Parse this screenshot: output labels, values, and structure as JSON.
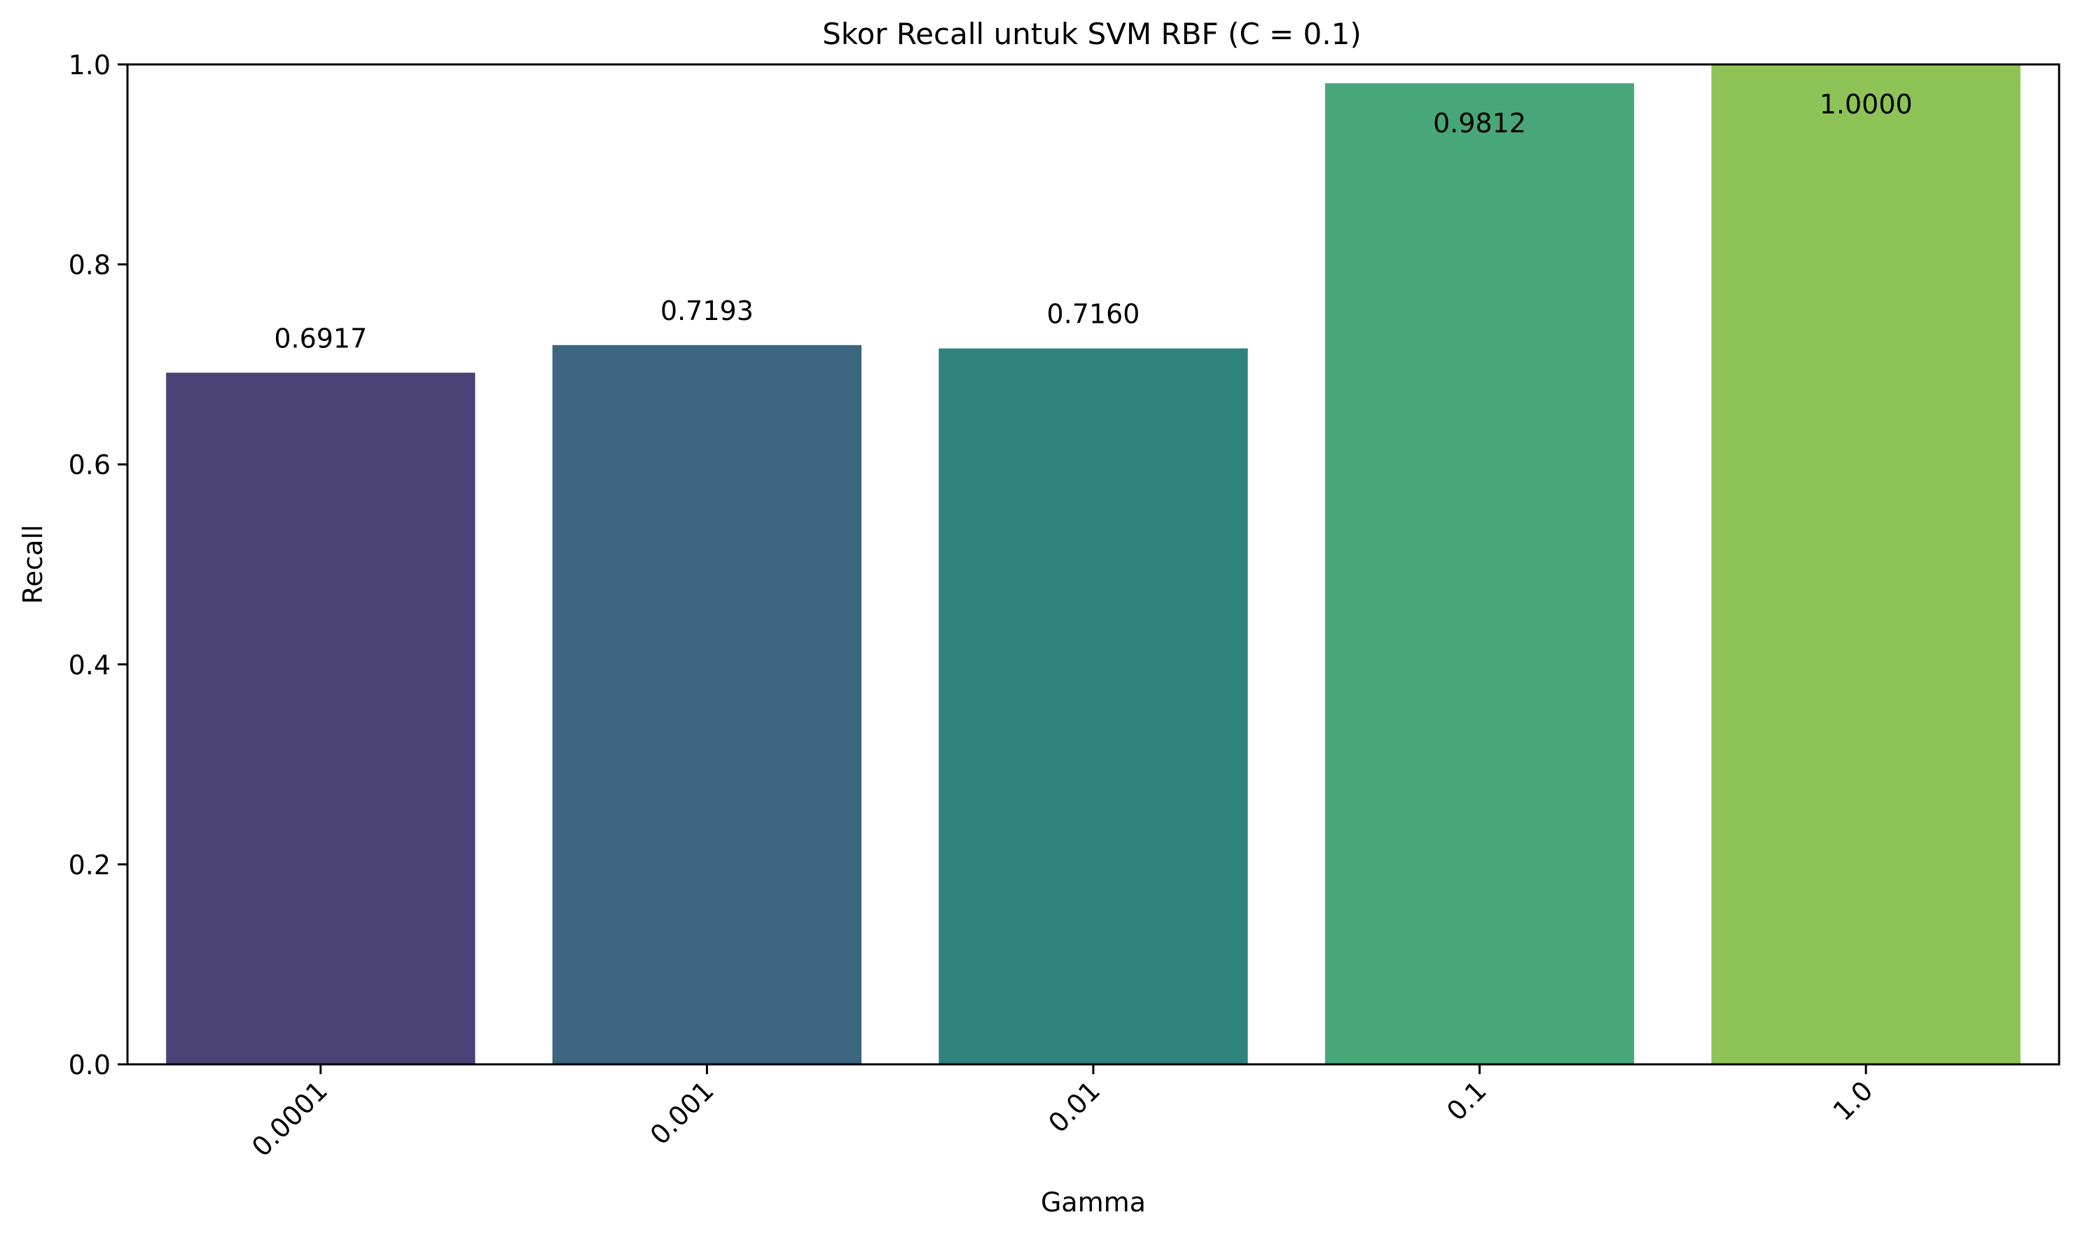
{
  "chart_data": {
    "type": "bar",
    "title": "Skor Recall untuk SVM RBF (C = 0.1)",
    "xlabel": "Gamma",
    "ylabel": "Recall",
    "categories": [
      "0.0001",
      "0.001",
      "0.01",
      "0.1",
      "1.0"
    ],
    "values": [
      0.6917,
      0.7193,
      0.716,
      0.9812,
      1.0
    ],
    "value_labels": [
      "0.6917",
      "0.7193",
      "0.7160",
      "0.9812",
      "1.0000"
    ],
    "colors": [
      "#4b4277",
      "#3d6680",
      "#2e837e",
      "#47a779",
      "#8dc356"
    ],
    "ylim": [
      0,
      1.0
    ],
    "yticks": [
      0.0,
      0.2,
      0.4,
      0.6,
      0.8,
      1.0
    ],
    "ytick_labels": [
      "0.0",
      "0.2",
      "0.4",
      "0.6",
      "0.8",
      "1.0"
    ],
    "xtick_rotation_deg": 45,
    "grid": false,
    "legend": false
  }
}
